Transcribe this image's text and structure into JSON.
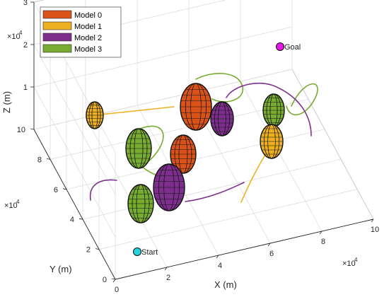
{
  "chart_data": {
    "type": "scatter",
    "title": "",
    "xlabel": "X (m)",
    "ylabel": "Y (m)",
    "zlabel": "Z (m)",
    "xlim": [
      0,
      100000
    ],
    "ylim": [
      0,
      100000
    ],
    "zlim": [
      0,
      30000
    ],
    "xticks": [
      "0",
      "2",
      "4",
      "6",
      "8",
      "10"
    ],
    "yticks": [
      "0",
      "2",
      "4",
      "6",
      "8",
      "10"
    ],
    "zticks": [
      "1",
      "2",
      "3"
    ],
    "x_exponent": "×10",
    "y_exponent": "×10",
    "z_exponent": "×10",
    "exponent_power": "4",
    "grid": true,
    "legend_position": "top-left",
    "legend": [
      {
        "name": "Model 0",
        "color": "#d95319"
      },
      {
        "name": "Model 1",
        "color": "#edb120"
      },
      {
        "name": "Model 2",
        "color": "#7e2f8e"
      },
      {
        "name": "Model 3",
        "color": "#77ac30"
      }
    ],
    "start": {
      "label": "Start",
      "x": 2000,
      "y": 3000,
      "z": 1000,
      "color": "#22d3e0"
    },
    "goal": {
      "label": "Goal",
      "x": 80000,
      "y": 95000,
      "z": 27000,
      "color": "#e619e6"
    },
    "ellipsoids": [
      {
        "model": "Model 1",
        "x": 60000,
        "y": 85000,
        "z": 14000
      },
      {
        "model": "Model 3",
        "x": 30000,
        "y": 67000,
        "z": 13000
      },
      {
        "model": "Model 0",
        "x": 54000,
        "y": 80000,
        "z": 19000
      },
      {
        "model": "Model 2",
        "x": 63000,
        "y": 77000,
        "z": 15000
      },
      {
        "model": "Model 3",
        "x": 83000,
        "y": 74000,
        "z": 16000
      },
      {
        "model": "Model 1",
        "x": 78000,
        "y": 65000,
        "z": 15000
      },
      {
        "model": "Model 0",
        "x": 44000,
        "y": 58000,
        "z": 16000
      },
      {
        "model": "Model 2",
        "x": 38000,
        "y": 48000,
        "z": 14500
      },
      {
        "model": "Model 3",
        "x": 28000,
        "y": 45000,
        "z": 14000
      }
    ]
  }
}
